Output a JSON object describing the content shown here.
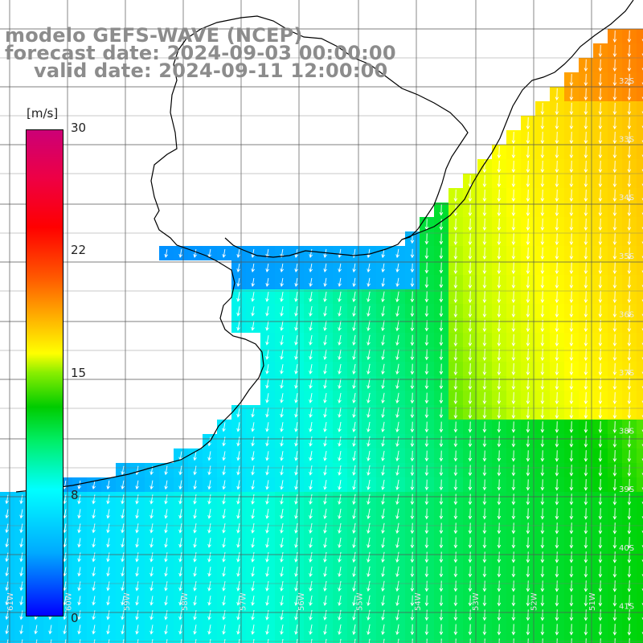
{
  "title": {
    "model": "modelo GEFS-WAVE (NCEP)",
    "forecast": "forecast date: 2024-09-03 00:00:00",
    "valid": "valid date: 2024-09-11 12:00:00"
  },
  "colorbar": {
    "units": "[m/s]",
    "min": 0,
    "max": 30,
    "ticks": [
      "30",
      "22",
      "15",
      "8",
      "0"
    ],
    "tick_values": [
      30,
      22,
      15,
      8,
      0
    ],
    "colors": [
      "#0000ff",
      "#00aaff",
      "#00ffff",
      "#00cc00",
      "#ffff00",
      "#ff5500",
      "#ff0000",
      "#cc0077"
    ]
  },
  "lon_labels": [
    "61W",
    "60W",
    "59W",
    "58W",
    "57W",
    "56W",
    "55W",
    "54W",
    "53W",
    "52W",
    "51W"
  ],
  "lat_labels": [
    "32S",
    "33S",
    "34S",
    "35S",
    "36S",
    "37S",
    "38S",
    "39S",
    "40S",
    "41S"
  ],
  "wind_direction": "from north-northeast toward south-southwest",
  "colors": {
    "land": "#ffffff",
    "grid": "#555555",
    "coast": "#000000",
    "arrow": "#ffffff",
    "title": "#8c8c8c"
  }
}
